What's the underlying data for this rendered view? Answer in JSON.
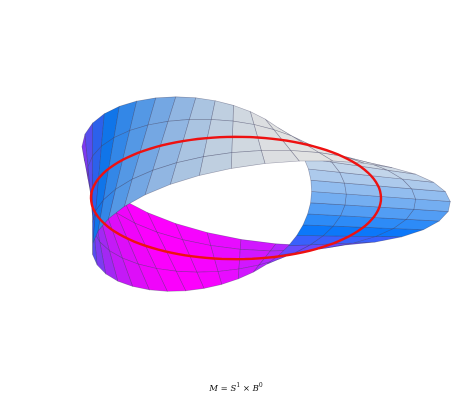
{
  "caption": {
    "m": "M",
    "eq": " = ",
    "s": "S",
    "s_exp": "1",
    "times": " × ",
    "b": "B",
    "b_exp": "0"
  },
  "colors": {
    "light": "#ffffff",
    "mid": "#0a7cff",
    "end": "#ff00ff",
    "mesh": "#3a3a5a",
    "core_circle": "#ee1111"
  },
  "figure": {
    "type": "mobius-strip",
    "grid_u": 36,
    "grid_v": 4,
    "core_circle": true
  }
}
